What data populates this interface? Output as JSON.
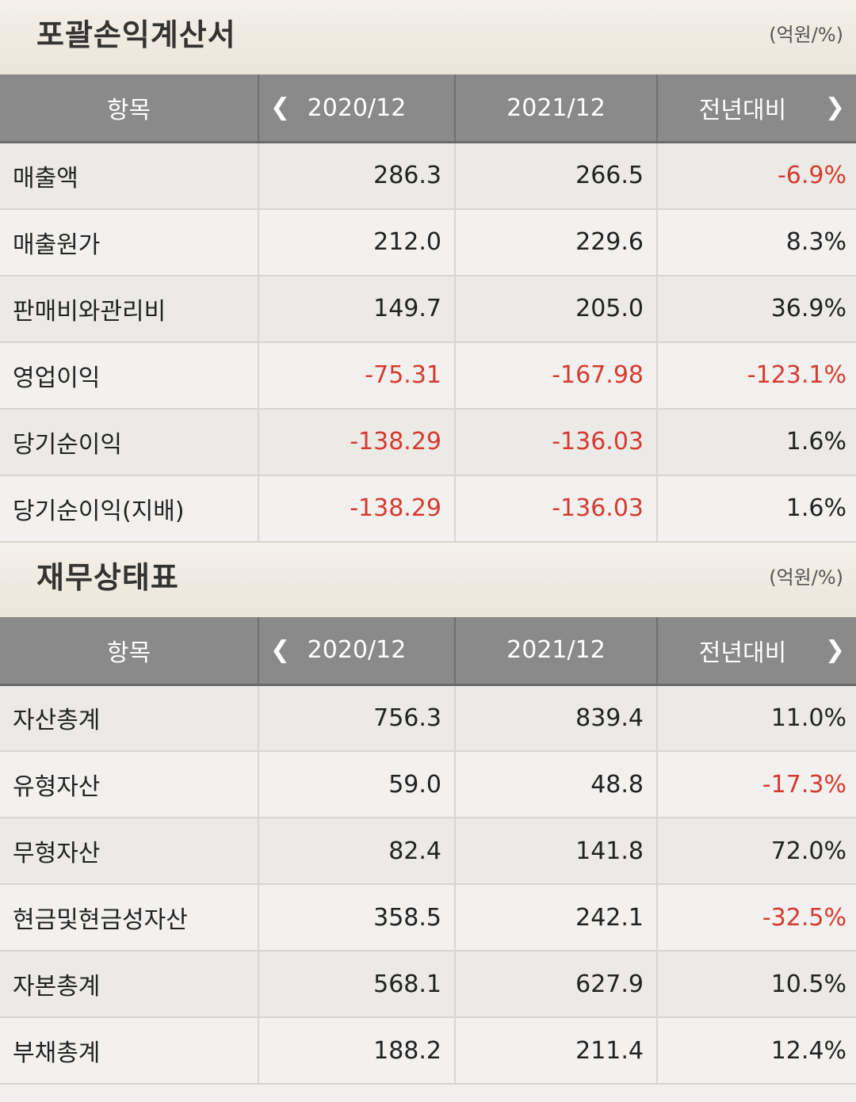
{
  "income": {
    "title": "포괄손익계산서",
    "unit": "(억원/%)",
    "headers": {
      "item": "항목",
      "y1": "2020/12",
      "y2": "2021/12",
      "yoy": "전년대비"
    },
    "rows": [
      {
        "label": "매출액",
        "y1": "286.3",
        "y2": "266.5",
        "yoy": "-6.9%"
      },
      {
        "label": "매출원가",
        "y1": "212.0",
        "y2": "229.6",
        "yoy": "8.3%"
      },
      {
        "label": "판매비와관리비",
        "y1": "149.7",
        "y2": "205.0",
        "yoy": "36.9%"
      },
      {
        "label": "영업이익",
        "y1": "-75.31",
        "y2": "-167.98",
        "yoy": "-123.1%"
      },
      {
        "label": "당기순이익",
        "y1": "-138.29",
        "y2": "-136.03",
        "yoy": "1.6%"
      },
      {
        "label": "당기순이익(지배)",
        "y1": "-138.29",
        "y2": "-136.03",
        "yoy": "1.6%"
      }
    ]
  },
  "balance": {
    "title": "재무상태표",
    "unit": "(억원/%)",
    "headers": {
      "item": "항목",
      "y1": "2020/12",
      "y2": "2021/12",
      "yoy": "전년대비"
    },
    "rows": [
      {
        "label": "자산총계",
        "y1": "756.3",
        "y2": "839.4",
        "yoy": "11.0%"
      },
      {
        "label": "유형자산",
        "y1": "59.0",
        "y2": "48.8",
        "yoy": "-17.3%"
      },
      {
        "label": "무형자산",
        "y1": "82.4",
        "y2": "141.8",
        "yoy": "72.0%"
      },
      {
        "label": "현금및현금성자산",
        "y1": "358.5",
        "y2": "242.1",
        "yoy": "-32.5%"
      },
      {
        "label": "자본총계",
        "y1": "568.1",
        "y2": "627.9",
        "yoy": "10.5%"
      },
      {
        "label": "부채총계",
        "y1": "188.2",
        "y2": "211.4",
        "yoy": "12.4%"
      }
    ]
  },
  "nav_icons": {
    "prev": "chevron-left-icon",
    "next": "chevron-right-icon"
  },
  "colors": {
    "negative": "#d63b2f",
    "header_bg": "#8a8a8a"
  }
}
